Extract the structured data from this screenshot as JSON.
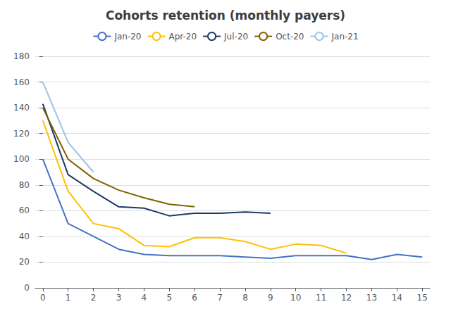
{
  "chart_data": {
    "type": "line",
    "title": "Cohorts retention (monthly payers)",
    "x": [
      0,
      1,
      2,
      3,
      4,
      5,
      6,
      7,
      8,
      9,
      10,
      11,
      12,
      13,
      14,
      15
    ],
    "series": [
      {
        "name": "Jan-20",
        "color": "#4472C4",
        "values": [
          100,
          50,
          40,
          30,
          26,
          25,
          25,
          25,
          24,
          23,
          25,
          25,
          25,
          22,
          26,
          24
        ]
      },
      {
        "name": "Apr-20",
        "color": "#FFC000",
        "values": [
          130,
          75,
          50,
          46,
          33,
          32,
          39,
          39,
          36,
          30,
          34,
          33,
          27,
          null,
          null,
          null
        ]
      },
      {
        "name": "Jul-20",
        "color": "#1F3864",
        "values": [
          143,
          88,
          75,
          63,
          62,
          56,
          58,
          58,
          59,
          58,
          null,
          null,
          null,
          null,
          null,
          null
        ]
      },
      {
        "name": "Oct-20",
        "color": "#7F6000",
        "values": [
          140,
          100,
          85,
          76,
          70,
          65,
          63,
          null,
          null,
          null,
          null,
          null,
          null,
          null,
          null,
          null
        ]
      },
      {
        "name": "Jan-21",
        "color": "#9DC3E6",
        "values": [
          160,
          113,
          90,
          null,
          null,
          null,
          null,
          null,
          null,
          null,
          null,
          null,
          null,
          null,
          null,
          null
        ]
      }
    ],
    "xlim": [
      -0.3,
      15.3
    ],
    "ylim": [
      0,
      180
    ],
    "xticks": [
      0,
      1,
      2,
      3,
      4,
      5,
      6,
      7,
      8,
      9,
      10,
      11,
      12,
      13,
      14,
      15
    ],
    "yticks": [
      0,
      20,
      40,
      60,
      80,
      100,
      120,
      140,
      160,
      180
    ],
    "grid": true,
    "legend": "top"
  }
}
